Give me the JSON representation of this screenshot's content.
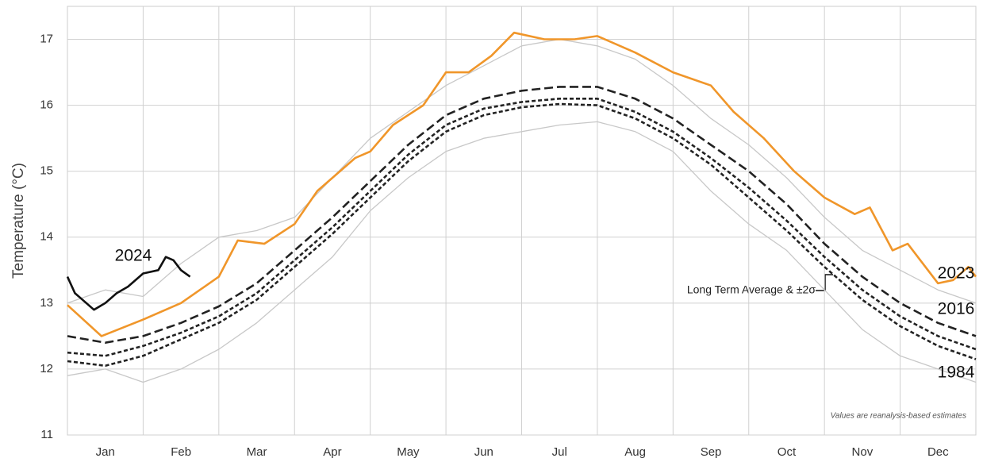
{
  "chart_data": {
    "type": "line",
    "y_label": "Temperature (°C)",
    "annotations": [
      "Long Term Average & ±2σ",
      "Values are reanalysis-based estimates"
    ],
    "categories": [
      "Jan",
      "Feb",
      "Mar",
      "Apr",
      "May",
      "Jun",
      "Jul",
      "Aug",
      "Sep",
      "Oct",
      "Nov",
      "Dec"
    ],
    "xlim": [
      0,
      12
    ],
    "ylim": [
      11,
      17.5
    ],
    "yticks": [
      11,
      12,
      13,
      14,
      15,
      16,
      17
    ],
    "grid": true,
    "series": [
      {
        "color": "#c8c8c8",
        "style": "solid",
        "x": [
          0,
          0.5,
          1,
          1.5,
          2,
          2.5,
          3,
          3.5,
          4,
          4.5,
          5,
          5.5,
          6,
          6.5,
          7,
          7.5,
          8,
          8.5,
          9,
          9.5,
          10,
          10.5,
          11,
          11.5,
          12
        ],
        "values": [
          13.0,
          13.2,
          13.1,
          13.6,
          14.0,
          14.1,
          14.3,
          14.9,
          15.5,
          15.9,
          16.3,
          16.6,
          16.9,
          17.0,
          16.9,
          16.7,
          16.3,
          15.8,
          15.4,
          14.9,
          14.3,
          13.8,
          13.5,
          13.2,
          13.0
        ]
      },
      {
        "color": "#c8c8c8",
        "style": "solid",
        "x": [
          0,
          0.5,
          1,
          1.5,
          2,
          2.5,
          3,
          3.5,
          4,
          4.5,
          5,
          5.5,
          6,
          6.5,
          7,
          7.5,
          8,
          8.5,
          9,
          9.5,
          10,
          10.5,
          11,
          11.5,
          12
        ],
        "values": [
          11.9,
          12.0,
          11.8,
          12.0,
          12.3,
          12.7,
          13.2,
          13.7,
          14.4,
          14.9,
          15.3,
          15.5,
          15.6,
          15.7,
          15.75,
          15.6,
          15.3,
          14.7,
          14.2,
          13.8,
          13.2,
          12.6,
          12.2,
          12.0,
          11.8
        ]
      },
      {
        "color": "#222222",
        "style": "short-dash",
        "x": [
          0,
          0.5,
          1,
          1.5,
          2,
          2.5,
          3,
          3.5,
          4,
          4.5,
          5,
          5.5,
          6,
          6.5,
          7,
          7.5,
          8,
          8.5,
          9,
          9.5,
          10,
          10.5,
          11,
          11.5,
          12
        ],
        "values": [
          12.25,
          12.2,
          12.35,
          12.55,
          12.8,
          13.15,
          13.65,
          14.15,
          14.7,
          15.25,
          15.7,
          15.95,
          16.05,
          16.1,
          16.1,
          15.9,
          15.6,
          15.2,
          14.75,
          14.25,
          13.7,
          13.2,
          12.8,
          12.5,
          12.3
        ]
      },
      {
        "name": "1984",
        "color": "#222222",
        "style": "short-dash",
        "x": [
          0,
          0.5,
          1,
          1.5,
          2,
          2.5,
          3,
          3.5,
          4,
          4.5,
          5,
          5.5,
          6,
          6.5,
          7,
          7.5,
          8,
          8.5,
          9,
          9.5,
          10,
          10.5,
          11,
          11.5,
          12
        ],
        "values": [
          12.12,
          12.05,
          12.2,
          12.45,
          12.7,
          13.05,
          13.55,
          14.05,
          14.6,
          15.15,
          15.6,
          15.85,
          15.97,
          16.02,
          16.0,
          15.8,
          15.5,
          15.1,
          14.6,
          14.1,
          13.55,
          13.05,
          12.65,
          12.35,
          12.15
        ]
      },
      {
        "name": "2016",
        "color": "#222222",
        "style": "long-dash",
        "x": [
          0,
          0.5,
          1,
          1.5,
          2,
          2.5,
          3,
          3.5,
          4,
          4.5,
          5,
          5.5,
          6,
          6.5,
          7,
          7.5,
          8,
          8.5,
          9,
          9.5,
          10,
          10.5,
          11,
          11.5,
          12
        ],
        "values": [
          12.5,
          12.4,
          12.5,
          12.7,
          12.95,
          13.3,
          13.8,
          14.3,
          14.85,
          15.4,
          15.85,
          16.1,
          16.22,
          16.28,
          16.28,
          16.1,
          15.8,
          15.4,
          15.0,
          14.5,
          13.9,
          13.4,
          13.0,
          12.7,
          12.5
        ]
      },
      {
        "name": "2023",
        "color": "#f0962a",
        "style": "solid",
        "x": [
          0,
          0.45,
          1,
          1.5,
          2,
          2.25,
          2.6,
          3,
          3.3,
          3.8,
          4,
          4.3,
          4.7,
          5,
          5.3,
          5.6,
          5.9,
          6.3,
          6.7,
          7,
          7.5,
          8,
          8.5,
          8.8,
          9.2,
          9.6,
          10,
          10.4,
          10.6,
          10.9,
          11.1,
          11.5,
          11.7,
          11.9,
          12
        ],
        "values": [
          12.97,
          12.5,
          12.75,
          13.0,
          13.4,
          13.95,
          13.9,
          14.2,
          14.7,
          15.2,
          15.3,
          15.7,
          16.0,
          16.5,
          16.5,
          16.75,
          17.1,
          17.0,
          17.0,
          17.05,
          16.8,
          16.5,
          16.3,
          15.9,
          15.5,
          15.0,
          14.6,
          14.35,
          14.45,
          13.8,
          13.9,
          13.3,
          13.35,
          13.55,
          13.4
        ]
      },
      {
        "name": "2024",
        "color": "#111111",
        "style": "solid",
        "x": [
          0,
          0.1,
          0.2,
          0.35,
          0.5,
          0.65,
          0.8,
          1.0,
          1.2,
          1.3,
          1.4,
          1.5,
          1.62
        ],
        "values": [
          13.4,
          13.15,
          13.05,
          12.9,
          13.0,
          13.15,
          13.25,
          13.45,
          13.5,
          13.7,
          13.65,
          13.5,
          13.4
        ]
      }
    ]
  }
}
